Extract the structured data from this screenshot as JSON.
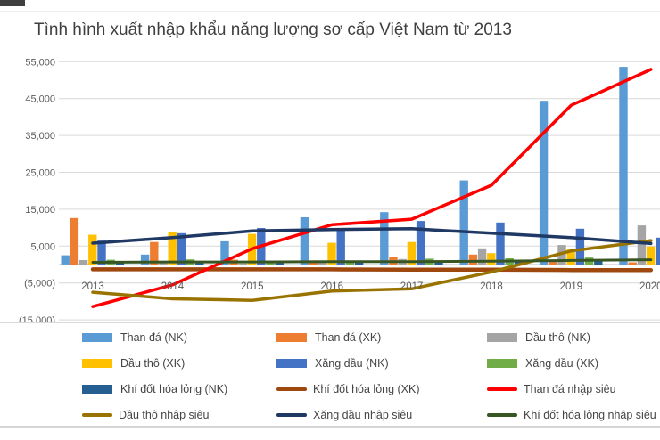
{
  "page": {
    "title": "Tình hình xuất nhập khẩu năng lượng sơ cấp Việt Nam từ 2013"
  },
  "chart_data": {
    "type": "combo-bar-line",
    "title": "Tình hình xuất nhập khẩu năng lượng sơ cấp Việt Nam từ 2013",
    "categories": [
      "2013",
      "2014",
      "2015",
      "2016",
      "2017",
      "2018",
      "2019",
      "2020"
    ],
    "y_axis": {
      "tick_labels": [
        "55,000",
        "45,000",
        "35,000",
        "25,000",
        "15,000",
        "5,000",
        "(5,000)",
        "(15,000)"
      ],
      "min": -15000,
      "max": 55000,
      "step": 10000,
      "grid": true
    },
    "bar_series": [
      {
        "name": "Than đá (NK)",
        "color": "#5B9BD5",
        "values": [
          2500,
          2700,
          6300,
          12800,
          14200,
          22800,
          44400,
          53600
        ]
      },
      {
        "name": "Than đá (XK)",
        "color": "#ED7D31",
        "values": [
          12600,
          6100,
          1300,
          1100,
          2000,
          2700,
          1000,
          600
        ]
      },
      {
        "name": "Dầu thô (NK)",
        "color": "#A5A5A5",
        "values": [
          1200,
          700,
          300,
          500,
          1500,
          4400,
          5300,
          10600
        ]
      },
      {
        "name": "Dầu thô (XK)",
        "color": "#FFC000",
        "values": [
          8100,
          8700,
          8300,
          5900,
          6100,
          3100,
          4100,
          4900
        ]
      },
      {
        "name": "Xăng dầu (NK)",
        "color": "#4472C4",
        "values": [
          6500,
          8500,
          9900,
          9500,
          11800,
          11400,
          9700,
          7300
        ]
      },
      {
        "name": "Xăng dầu (XK)",
        "color": "#70AD47",
        "values": [
          1300,
          1400,
          900,
          1000,
          1600,
          1700,
          1900,
          2100
        ]
      },
      {
        "name": "Khí đốt hóa lỏng (NK)",
        "color": "#255E91",
        "values": [
          700,
          800,
          900,
          900,
          1000,
          1100,
          1300,
          1500
        ]
      }
    ],
    "line_series": [
      {
        "name": "Khí đốt hóa lỏng (XK)",
        "color": "#9E480E",
        "width": 4.5,
        "values": [
          -1300,
          -1300,
          -1300,
          -1300,
          -1400,
          -1400,
          -1500,
          -1500
        ]
      },
      {
        "name": "Than đá nhập siêu",
        "color": "#FF0000",
        "width": 3.5,
        "values": [
          -11400,
          -5500,
          4300,
          10800,
          12300,
          21500,
          43200,
          52900
        ]
      },
      {
        "name": "Dầu thô nhập siêu",
        "color": "#997300",
        "width": 3.5,
        "values": [
          -7500,
          -9300,
          -9700,
          -7200,
          -6600,
          -2000,
          3700,
          6500
        ]
      },
      {
        "name": "Xăng dầu nhập siêu",
        "color": "#1F3864",
        "width": 3.5,
        "values": [
          5800,
          7300,
          9100,
          9500,
          9700,
          8500,
          7300,
          5700
        ]
      },
      {
        "name": "Khí đốt hóa lỏng nhập siêu",
        "color": "#375623",
        "width": 3,
        "values": [
          600,
          700,
          700,
          800,
          800,
          900,
          1100,
          1300
        ]
      }
    ],
    "legend": {
      "position": "bottom",
      "items": [
        {
          "label": "Than đá (NK)",
          "swatch": "bar",
          "color": "#5B9BD5"
        },
        {
          "label": "Than đá (XK)",
          "swatch": "bar",
          "color": "#ED7D31"
        },
        {
          "label": "Dầu thô (NK)",
          "swatch": "bar",
          "color": "#A5A5A5"
        },
        {
          "label": "Dầu thô (XK)",
          "swatch": "bar",
          "color": "#FFC000"
        },
        {
          "label": "Xăng dầu (NK)",
          "swatch": "bar",
          "color": "#4472C4"
        },
        {
          "label": "Xăng dầu (XK)",
          "swatch": "bar",
          "color": "#70AD47"
        },
        {
          "label": "Khí đốt hóa lỏng (NK)",
          "swatch": "bar",
          "color": "#255E91"
        },
        {
          "label": "Khí đốt hóa lỏng (XK)",
          "swatch": "line",
          "color": "#9E480E"
        },
        {
          "label": "Than đá nhập siêu",
          "swatch": "line",
          "color": "#FF0000"
        },
        {
          "label": "Dầu thô nhập siêu",
          "swatch": "line",
          "color": "#997300"
        },
        {
          "label": "Xăng dầu nhập siêu",
          "swatch": "line",
          "color": "#1F3864"
        },
        {
          "label": "Khí đốt hóa lỏng nhập siêu",
          "swatch": "line",
          "color": "#375623"
        }
      ]
    },
    "style": {
      "grid_color": "#d9d9d9",
      "axis_color": "#bfbfbf",
      "tick_label_color": "#595959",
      "title_color": "#3f3f3f"
    }
  }
}
